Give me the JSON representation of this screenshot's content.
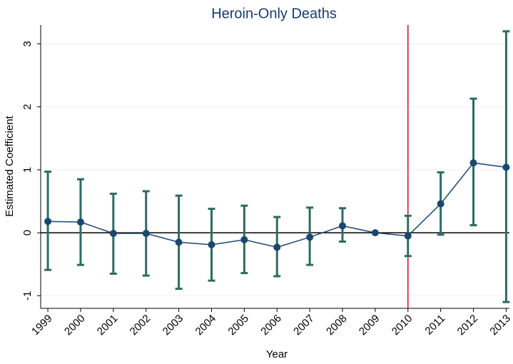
{
  "chart_data": {
    "type": "errorbar",
    "title": "Heroin-Only Deaths",
    "x_label": "Year",
    "y_label": "Estimated Coefficient",
    "x": [
      1999,
      2000,
      2001,
      2002,
      2003,
      2004,
      2005,
      2006,
      2007,
      2008,
      2009,
      2010,
      2011,
      2012,
      2013
    ],
    "values": [
      0.18,
      0.17,
      -0.01,
      -0.01,
      -0.15,
      -0.19,
      -0.11,
      -0.23,
      -0.07,
      0.11,
      0,
      -0.05,
      0.46,
      1.11,
      1.04
    ],
    "lower": [
      -0.59,
      -0.51,
      -0.65,
      -0.68,
      -0.89,
      -0.76,
      -0.64,
      -0.69,
      -0.51,
      -0.14,
      null,
      -0.37,
      -0.03,
      0.12,
      -1.1
    ],
    "upper": [
      0.97,
      0.85,
      0.62,
      0.66,
      0.59,
      0.38,
      0.43,
      0.25,
      0.4,
      0.39,
      null,
      0.27,
      0.96,
      2.13,
      3.2
    ],
    "line_color": "#1a476f",
    "bar_color": "#2e6b62",
    "xlim": [
      1998.78,
      2013.1
    ],
    "ylim": [
      -1.2,
      3.3
    ],
    "xticks": [
      1999,
      2000,
      2001,
      2002,
      2003,
      2004,
      2005,
      2006,
      2007,
      2008,
      2009,
      2010,
      2011,
      2012,
      2013
    ],
    "yticks": [
      -1,
      0,
      1,
      2,
      3
    ],
    "grid": true,
    "hline": 0,
    "hline_color": "#000000",
    "vline": 2010,
    "vline_color": "#c8102e"
  }
}
